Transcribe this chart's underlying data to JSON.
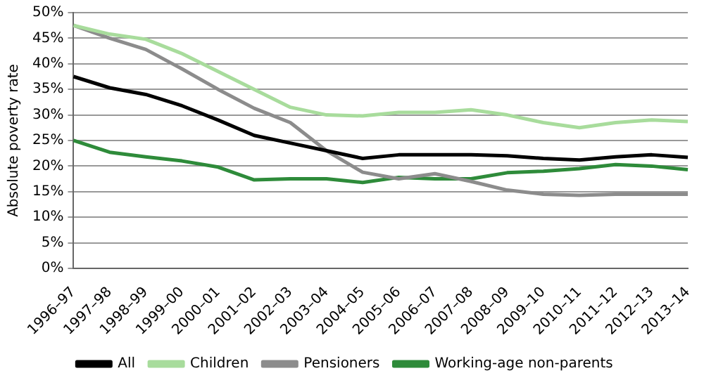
{
  "chart_data": {
    "type": "line",
    "ylabel": "Absolute poverty rate",
    "categories": [
      "1996–97",
      "1997–98",
      "1998–99",
      "1999–00",
      "2000–01",
      "2001–02",
      "2002–03",
      "2003–04",
      "2004–05",
      "2005–06",
      "2006–07",
      "2007–08",
      "2008–09",
      "2009–10",
      "2010–11",
      "2011–12",
      "2012–13",
      "2013–14"
    ],
    "series": [
      {
        "name": "All",
        "color": "#000000",
        "values": [
          37.5,
          35.3,
          34,
          31.8,
          29,
          26,
          24.5,
          23,
          21.5,
          22.2,
          22.2,
          22.2,
          22,
          21.5,
          21.2,
          21.8,
          22.2,
          21.7
        ]
      },
      {
        "name": "Children",
        "color": "#a8dc9c",
        "values": [
          47.5,
          45.8,
          44.8,
          42,
          38.5,
          35,
          31.5,
          30,
          29.8,
          30.5,
          30.5,
          31,
          30,
          28.5,
          27.5,
          28.5,
          29,
          28.7
        ]
      },
      {
        "name": "Pensioners",
        "color": "#8c8c8c",
        "values": [
          47.5,
          45,
          42.8,
          39,
          35,
          31.3,
          28.5,
          23,
          18.8,
          17.5,
          18.5,
          17,
          15.3,
          14.5,
          14.3,
          14.5,
          14.5,
          14.5
        ]
      },
      {
        "name": "Working-age non-parents",
        "color": "#2e8b3a",
        "values": [
          25,
          22.7,
          21.8,
          21,
          19.8,
          17.3,
          17.5,
          17.5,
          16.8,
          17.8,
          17.5,
          17.5,
          18.7,
          19,
          19.5,
          20.3,
          20,
          19.3
        ]
      }
    ],
    "ylim": [
      0,
      50
    ],
    "yticks": [
      {
        "value": 0,
        "label": "0%"
      },
      {
        "value": 5,
        "label": "5%"
      },
      {
        "value": 10,
        "label": "10%"
      },
      {
        "value": 15,
        "label": "15%"
      },
      {
        "value": 20,
        "label": "20%"
      },
      {
        "value": 25,
        "label": "25%"
      },
      {
        "value": 30,
        "label": "30%"
      },
      {
        "value": 35,
        "label": "35%"
      },
      {
        "value": 40,
        "label": "40%"
      },
      {
        "value": 45,
        "label": "45%"
      },
      {
        "value": 50,
        "label": "50%"
      }
    ],
    "grid": "y",
    "legend": "bottom",
    "marker": "none",
    "line_style": "solid"
  }
}
